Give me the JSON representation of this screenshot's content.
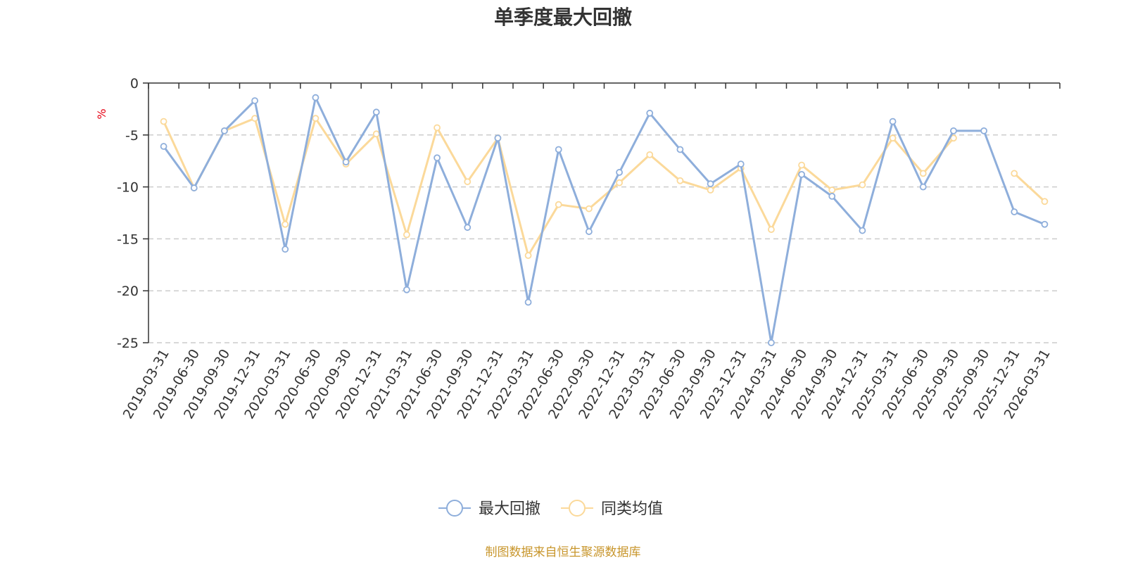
{
  "chart_data": {
    "type": "line",
    "title": "单季度最大回撤",
    "ylabel": "%",
    "ylim": [
      -25,
      0
    ],
    "yticks": [
      0,
      -5,
      -10,
      -15,
      -20,
      -25
    ],
    "grid": true,
    "legend_position": "bottom",
    "categories": [
      "2019-03-31",
      "2019-06-30",
      "2019-09-30",
      "2019-12-31",
      "2020-03-31",
      "2020-06-30",
      "2020-09-30",
      "2020-12-31",
      "2021-03-31",
      "2021-06-30",
      "2021-09-30",
      "2021-12-31",
      "2022-03-31",
      "2022-06-30",
      "2022-09-30",
      "2022-12-31",
      "2023-03-31",
      "2023-06-30",
      "2023-09-30",
      "2023-12-31",
      "2024-03-31",
      "2024-06-30",
      "2024-09-30",
      "2024-12-31",
      "2025-03-31",
      "2025-06-30",
      "2025-09-30",
      "2025-09-30",
      "2025-12-31",
      "2026-03-31"
    ],
    "series": [
      {
        "name": "最大回撤",
        "color": "#8eaedb",
        "values": [
          -6.1,
          -10.1,
          -4.6,
          -1.7,
          -16.0,
          -1.4,
          -7.6,
          -2.8,
          -19.9,
          -7.2,
          -13.9,
          -5.3,
          -21.1,
          -6.4,
          -14.3,
          -8.6,
          -2.9,
          -6.4,
          -9.7,
          -7.8,
          -25.0,
          -8.8,
          -10.9,
          -14.2,
          -3.7,
          -10.0,
          -4.6,
          -4.6,
          -12.4,
          -13.6
        ]
      },
      {
        "name": "同类均值",
        "color": "#fbd99a",
        "values": [
          -3.7,
          -10.1,
          -4.6,
          -3.4,
          -13.6,
          -3.4,
          -7.8,
          -4.9,
          -14.6,
          -4.3,
          -9.5,
          -5.3,
          -16.6,
          -11.7,
          -12.1,
          -9.6,
          -6.9,
          -9.4,
          -10.3,
          -8.2,
          -14.1,
          -7.9,
          -10.3,
          -9.8,
          -5.3,
          -8.7,
          -5.3,
          null,
          -8.7,
          -11.4
        ]
      }
    ]
  },
  "source_note": "制图数据来自恒生聚源数据库"
}
